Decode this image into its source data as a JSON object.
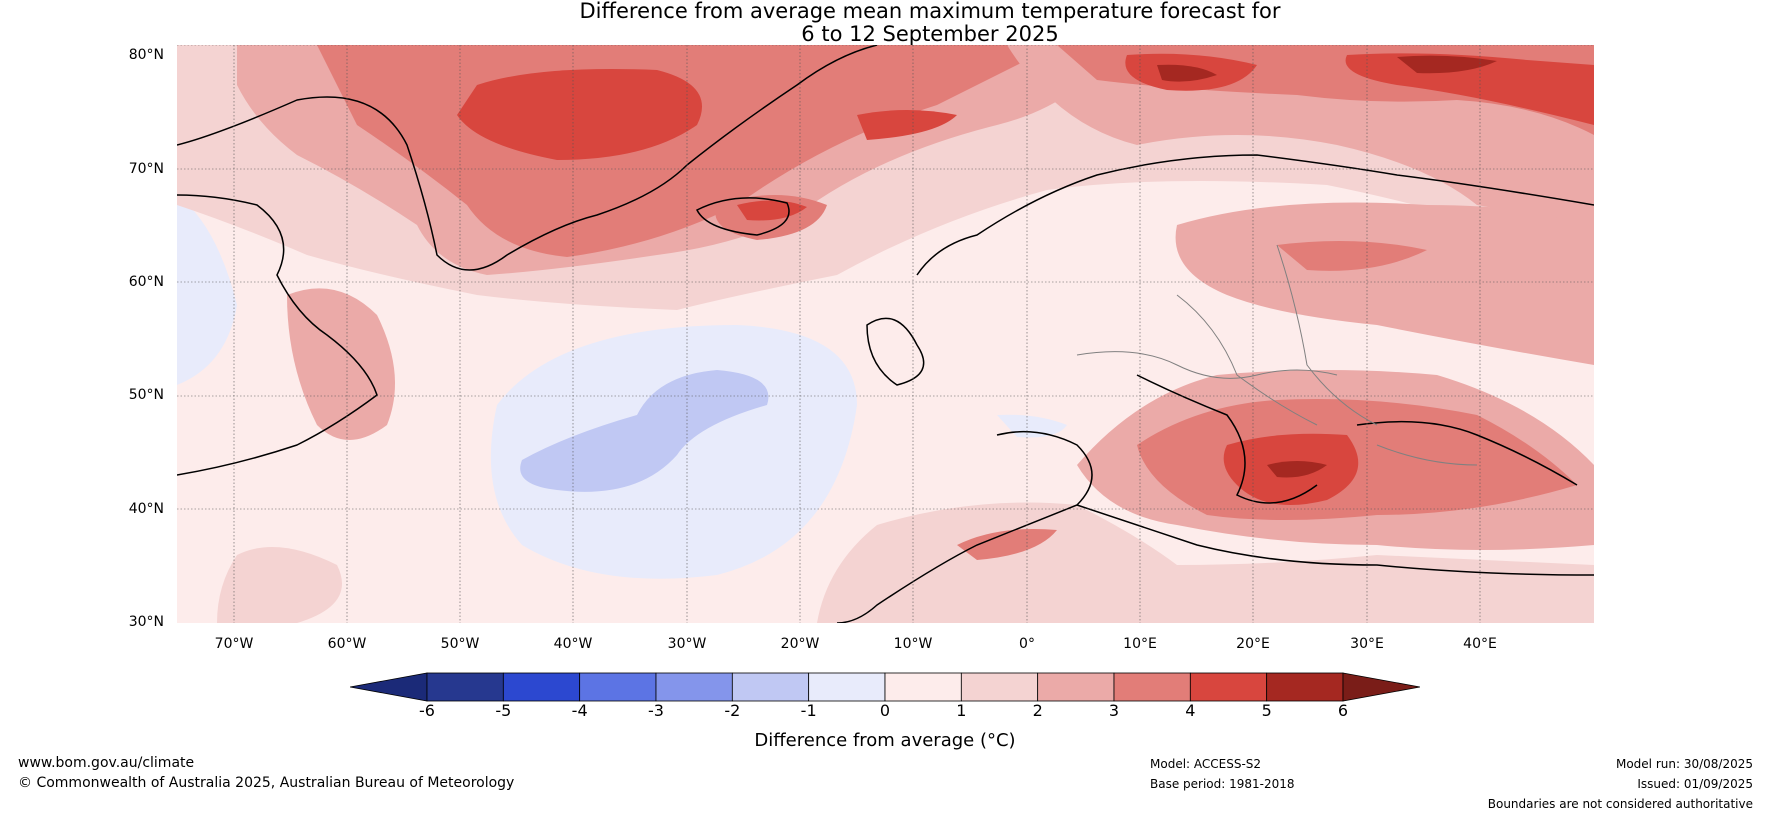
{
  "title": {
    "line1": "Difference from average mean maximum temperature forecast for",
    "line2": "6 to 12 September 2025"
  },
  "map": {
    "lat_labels": [
      "80°N",
      "70°N",
      "60°N",
      "50°N",
      "40°N",
      "30°N"
    ],
    "lon_labels": [
      "70°W",
      "60°W",
      "50°W",
      "40°W",
      "30°W",
      "20°W",
      "10°W",
      "0°",
      "10°E",
      "20°E",
      "30°E",
      "40°E"
    ]
  },
  "colorbar": {
    "ticks": [
      "-6",
      "-5",
      "-4",
      "-3",
      "-2",
      "-1",
      "0",
      "1",
      "2",
      "3",
      "4",
      "5",
      "6"
    ],
    "colors": [
      "#26388f",
      "#2c48d0",
      "#5c74e4",
      "#8495eb",
      "#c0c8f3",
      "#e8ebfb",
      "#fdeceb",
      "#f4d3d2",
      "#ebaaa8",
      "#e27d78",
      "#d8463e",
      "#a52821"
    ],
    "under_color": "#1b2a78",
    "over_color": "#7a1d18",
    "label": "Difference from average (°C)"
  },
  "footer": {
    "website": "www.bom.gov.au/climate",
    "copyright": "© Commonwealth of Australia 2025, Australian Bureau of Meteorology",
    "model": "Model: ACCESS-S2",
    "base_period": "Base period: 1981-2018",
    "model_run": "Model run: 30/08/2025",
    "issued": "Issued: 01/09/2025",
    "disclaimer": "Boundaries are not considered authoritative"
  }
}
